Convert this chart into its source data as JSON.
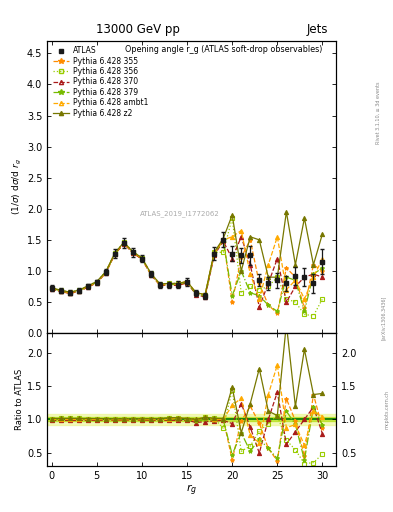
{
  "title_center": "13000 GeV pp",
  "title_right": "Jets",
  "annotation": "Opening angle r_g (ATLAS soft-drop observables)",
  "watermark": "ATLAS_2019_I1772062",
  "ylim_main": [
    0.0,
    4.7
  ],
  "ylim_ratio": [
    0.3,
    2.3
  ],
  "xmin": -0.5,
  "xmax": 31.5,
  "xticks": [
    0,
    5,
    10,
    15,
    20,
    25,
    30
  ],
  "x_data": [
    0,
    1,
    2,
    3,
    4,
    5,
    6,
    7,
    8,
    9,
    10,
    11,
    12,
    13,
    14,
    15,
    16,
    17,
    18,
    19,
    20,
    21,
    22,
    23,
    24,
    25,
    26,
    27,
    28,
    29,
    30
  ],
  "atlas_y": [
    0.72,
    0.68,
    0.65,
    0.68,
    0.75,
    0.82,
    0.98,
    1.28,
    1.45,
    1.3,
    1.2,
    0.95,
    0.78,
    0.78,
    0.78,
    0.82,
    0.65,
    0.6,
    1.28,
    1.5,
    1.28,
    1.25,
    1.25,
    0.85,
    0.8,
    0.85,
    0.8,
    0.92,
    0.9,
    0.8,
    1.15
  ],
  "atlas_yerr": [
    0.05,
    0.04,
    0.04,
    0.04,
    0.04,
    0.04,
    0.05,
    0.07,
    0.08,
    0.07,
    0.06,
    0.05,
    0.05,
    0.05,
    0.06,
    0.06,
    0.05,
    0.05,
    0.1,
    0.12,
    0.12,
    0.12,
    0.15,
    0.1,
    0.1,
    0.12,
    0.12,
    0.15,
    0.15,
    0.15,
    0.2
  ],
  "p355_y": [
    0.72,
    0.67,
    0.64,
    0.67,
    0.74,
    0.81,
    0.97,
    1.27,
    1.44,
    1.29,
    1.19,
    0.94,
    0.77,
    0.77,
    0.77,
    0.81,
    0.64,
    0.6,
    1.26,
    1.52,
    0.5,
    1.22,
    1.5,
    0.8,
    0.45,
    0.32,
    1.05,
    0.9,
    0.4,
    1.1,
    1.0
  ],
  "p356_y": [
    0.73,
    0.69,
    0.66,
    0.69,
    0.76,
    0.83,
    0.99,
    1.29,
    1.46,
    1.31,
    1.21,
    0.96,
    0.79,
    0.8,
    0.8,
    0.83,
    0.64,
    0.62,
    1.3,
    1.3,
    1.85,
    0.65,
    0.75,
    0.7,
    0.75,
    0.9,
    0.55,
    0.5,
    0.3,
    0.28,
    0.55
  ],
  "p370_y": [
    0.71,
    0.67,
    0.64,
    0.67,
    0.74,
    0.81,
    0.97,
    1.27,
    1.44,
    1.29,
    1.19,
    0.94,
    0.77,
    0.77,
    0.77,
    0.81,
    0.62,
    0.58,
    1.25,
    1.48,
    1.2,
    1.55,
    1.1,
    0.42,
    0.8,
    1.2,
    0.5,
    0.75,
    0.9,
    0.95,
    0.9
  ],
  "p379_y": [
    0.72,
    0.68,
    0.65,
    0.68,
    0.75,
    0.82,
    0.98,
    1.28,
    1.45,
    1.3,
    1.2,
    0.95,
    0.78,
    0.78,
    0.79,
    0.82,
    0.63,
    0.6,
    1.27,
    1.5,
    0.6,
    1.0,
    0.65,
    0.6,
    0.45,
    0.35,
    0.9,
    0.85,
    0.35,
    0.95,
    1.05
  ],
  "pambt1_y": [
    0.72,
    0.68,
    0.65,
    0.68,
    0.75,
    0.82,
    0.98,
    1.28,
    1.45,
    1.3,
    1.2,
    0.95,
    0.78,
    0.78,
    0.8,
    0.83,
    0.65,
    0.62,
    1.28,
    1.5,
    1.55,
    1.65,
    0.95,
    0.55,
    1.1,
    1.55,
    0.7,
    0.85,
    0.55,
    0.9,
    1.2
  ],
  "pz2_y": [
    0.73,
    0.69,
    0.66,
    0.69,
    0.76,
    0.83,
    0.99,
    1.29,
    1.46,
    1.31,
    1.21,
    0.96,
    0.79,
    0.8,
    0.8,
    0.83,
    0.65,
    0.62,
    1.3,
    1.52,
    1.9,
    1.0,
    1.55,
    1.5,
    0.9,
    0.9,
    1.95,
    1.1,
    1.85,
    1.1,
    1.6
  ],
  "colors": {
    "atlas": "#1a1a1a",
    "p355": "#ff8c00",
    "p356": "#99cc00",
    "p370": "#aa1a1a",
    "p379": "#77bb00",
    "pambt1": "#ffaa00",
    "pz2": "#777700"
  },
  "band_color_outer": "#ddee44",
  "band_color_inner": "#aadd00",
  "band_alpha_outer": 0.35,
  "band_alpha_inner": 0.6,
  "ratio_band_outer": 0.08,
  "ratio_band_inner": 0.03,
  "green_line": "#007700"
}
